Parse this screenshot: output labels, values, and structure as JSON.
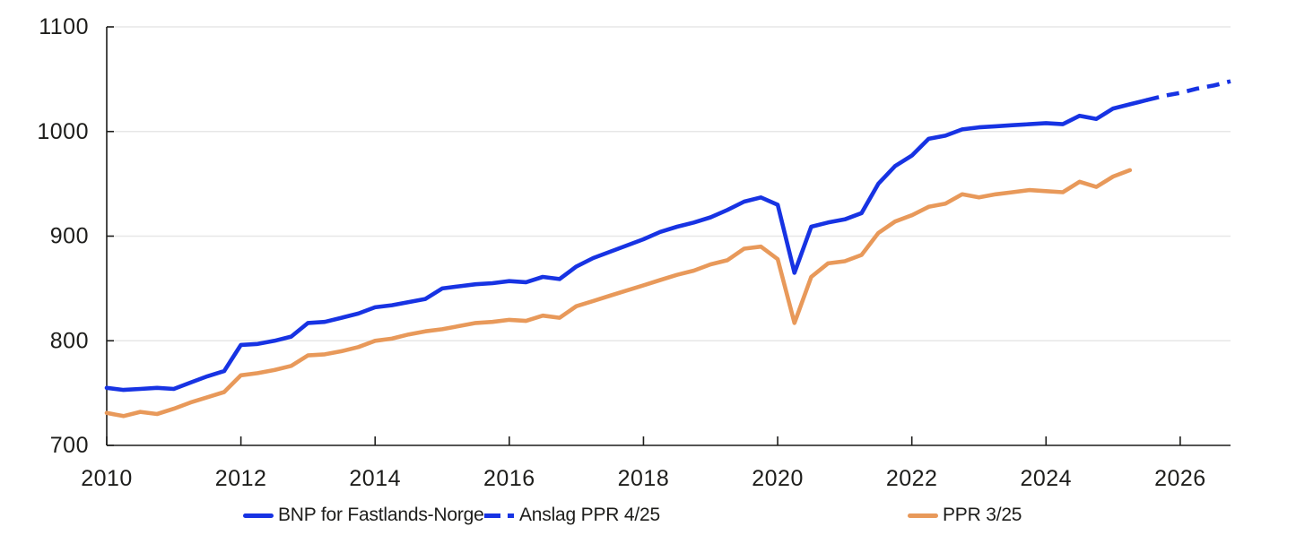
{
  "chart_data": {
    "type": "line",
    "title": "",
    "xlabel": "",
    "ylabel": "",
    "xlim": [
      2010,
      2026.75
    ],
    "ylim": [
      700,
      1100
    ],
    "x_ticks": [
      2010,
      2012,
      2014,
      2016,
      2018,
      2020,
      2022,
      2024,
      2026
    ],
    "y_ticks": [
      700,
      800,
      900,
      1000,
      1100
    ],
    "grid": "horizontal",
    "legend_position": "bottom",
    "x_step": 0.25,
    "x_unit": "quarterly",
    "colors": {
      "blue": "#1733e3",
      "orange": "#e8995a",
      "grid": "#e7e7e7",
      "axis": "#1d1d1b",
      "text": "#1d1d1b",
      "background": "#ffffff"
    },
    "series": [
      {
        "name": "BNP for Fastlands-Norge",
        "color_key": "blue",
        "style": "solid",
        "x_start": 2010.0,
        "values": [
          755,
          753,
          754,
          755,
          754,
          760,
          766,
          771,
          796,
          797,
          800,
          804,
          817,
          818,
          822,
          826,
          832,
          834,
          837,
          840,
          850,
          852,
          854,
          855,
          857,
          856,
          861,
          859,
          871,
          879,
          885,
          891,
          897,
          904,
          909,
          913,
          918,
          925,
          933,
          937,
          930,
          865,
          909,
          913,
          916,
          922,
          950,
          967,
          977,
          993,
          996,
          1002,
          1004,
          1005,
          1006,
          1007,
          1008,
          1007,
          1015,
          1012,
          1022,
          1026,
          1030
        ]
      },
      {
        "name": "Anslag PPR 4/25",
        "color_key": "blue",
        "style": "dashed",
        "x_start": 2025.5,
        "values": [
          1030,
          1034,
          1037,
          1041,
          1044,
          1048
        ]
      },
      {
        "name": "PPR 3/25",
        "color_key": "orange",
        "style": "solid",
        "x_start": 2010.0,
        "values": [
          731,
          728,
          732,
          730,
          735,
          741,
          746,
          751,
          767,
          769,
          772,
          776,
          786,
          787,
          790,
          794,
          800,
          802,
          806,
          809,
          811,
          814,
          817,
          818,
          820,
          819,
          824,
          822,
          833,
          838,
          843,
          848,
          853,
          858,
          863,
          867,
          873,
          877,
          888,
          890,
          878,
          817,
          861,
          874,
          876,
          882,
          903,
          914,
          920,
          928,
          931,
          940,
          937,
          940,
          942,
          944,
          943,
          942,
          952,
          947,
          957,
          963
        ]
      }
    ]
  }
}
